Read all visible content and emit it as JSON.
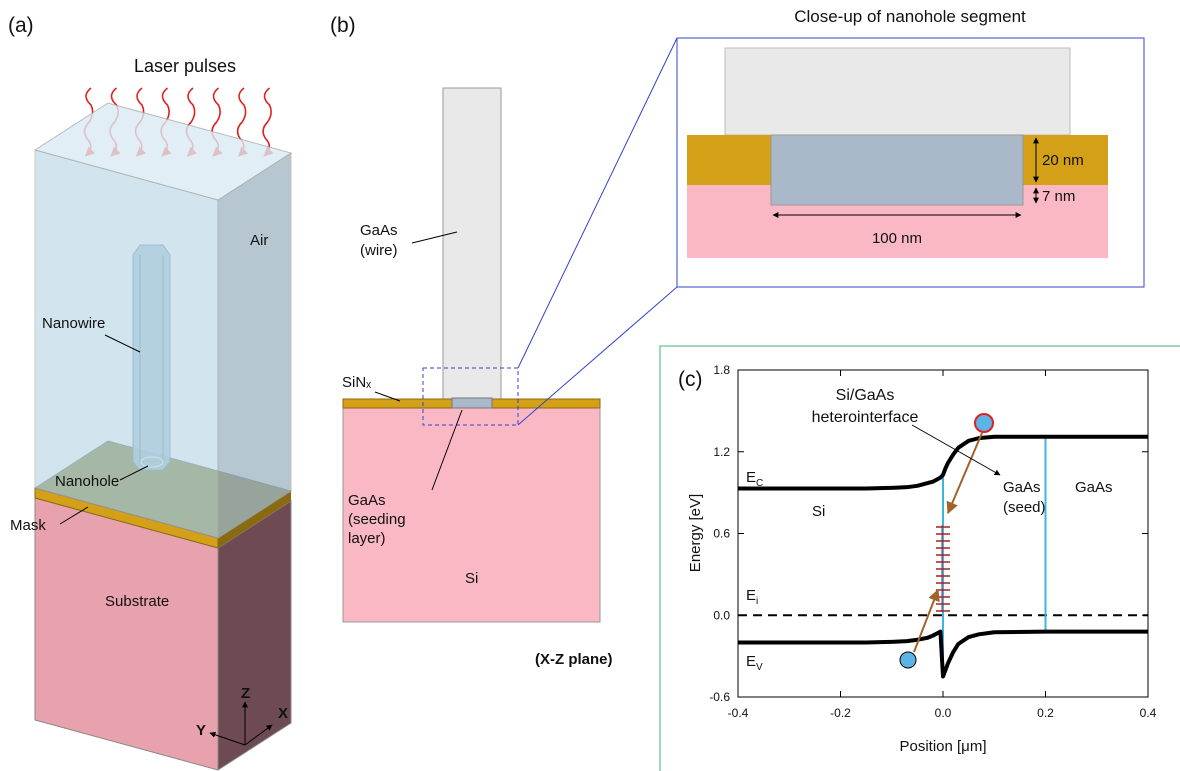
{
  "panel_a": {
    "label": "(a)",
    "laser": "Laser pulses",
    "air": "Air",
    "nanowire": "Nanowire",
    "nanohole": "Nanohole",
    "mask": "Mask",
    "substrate": "Substrate",
    "axes": {
      "z": "Z",
      "x": "X",
      "y": "Y"
    }
  },
  "panel_b": {
    "label": "(b)",
    "wire": [
      "GaAs",
      "(wire)"
    ],
    "sinx": "SiNₓ",
    "seed": [
      "GaAs",
      "(seeding",
      "layer)"
    ],
    "si": "Si",
    "plane": "(X-Z plane)"
  },
  "closeup": {
    "title": "Close-up of nanohole segment",
    "mask_thickness": "20 nm",
    "recess_depth": "7 nm",
    "hole_width": "100 nm"
  },
  "chart_data": {
    "type": "line",
    "label": "(c)",
    "x_label": "Position [μm]",
    "y_label": "Energy [eV]",
    "xlim": [
      -0.4,
      0.4
    ],
    "xticks": [
      -0.4,
      -0.2,
      {
        "value": 0,
        "label": "0.0"
      },
      0.2,
      0.4
    ],
    "ylim": [
      -0.6,
      1.8
    ],
    "yticks": [
      -0.6,
      {
        "value": 0,
        "label": "0.0"
      },
      0.6,
      1.2,
      1.8
    ],
    "x": [
      -0.4,
      -0.3,
      -0.2,
      -0.15,
      -0.1,
      -0.07,
      -0.05,
      -0.03,
      -0.02,
      -0.01,
      -0.005,
      0,
      0.005,
      0.01,
      0.02,
      0.03,
      0.05,
      0.07,
      0.1,
      0.2,
      0.3,
      0.4
    ],
    "series": [
      {
        "color": "#000000",
        "values": [
          0.93,
          0.93,
          0.93,
          0.93,
          0.935,
          0.94,
          0.95,
          0.97,
          0.98,
          1.0,
          1.01,
          1.03,
          1.08,
          1.12,
          1.18,
          1.23,
          1.28,
          1.3,
          1.31,
          1.31,
          1.31,
          1.31
        ]
      },
      {
        "color": "#000000",
        "values": [
          -0.2,
          -0.2,
          -0.2,
          -0.2,
          -0.195,
          -0.19,
          -0.18,
          -0.165,
          -0.15,
          -0.13,
          -0.12,
          -0.45,
          -0.4,
          -0.35,
          -0.27,
          -0.21,
          -0.16,
          -0.14,
          -0.125,
          -0.12,
          -0.12,
          -0.12
        ]
      }
    ],
    "ei_level": 0,
    "interfaces": [
      0,
      0.2
    ],
    "interface_color": "#3cb4e6",
    "annotations": {
      "interface": [
        "Si/GaAs",
        "heterointerface"
      ],
      "ec": [
        "E",
        "C"
      ],
      "ei": [
        "E",
        "i"
      ],
      "ev": [
        "E",
        "V"
      ],
      "si": "Si",
      "seed": [
        "GaAs",
        "(seed)"
      ],
      "gaas": "GaAs"
    }
  }
}
